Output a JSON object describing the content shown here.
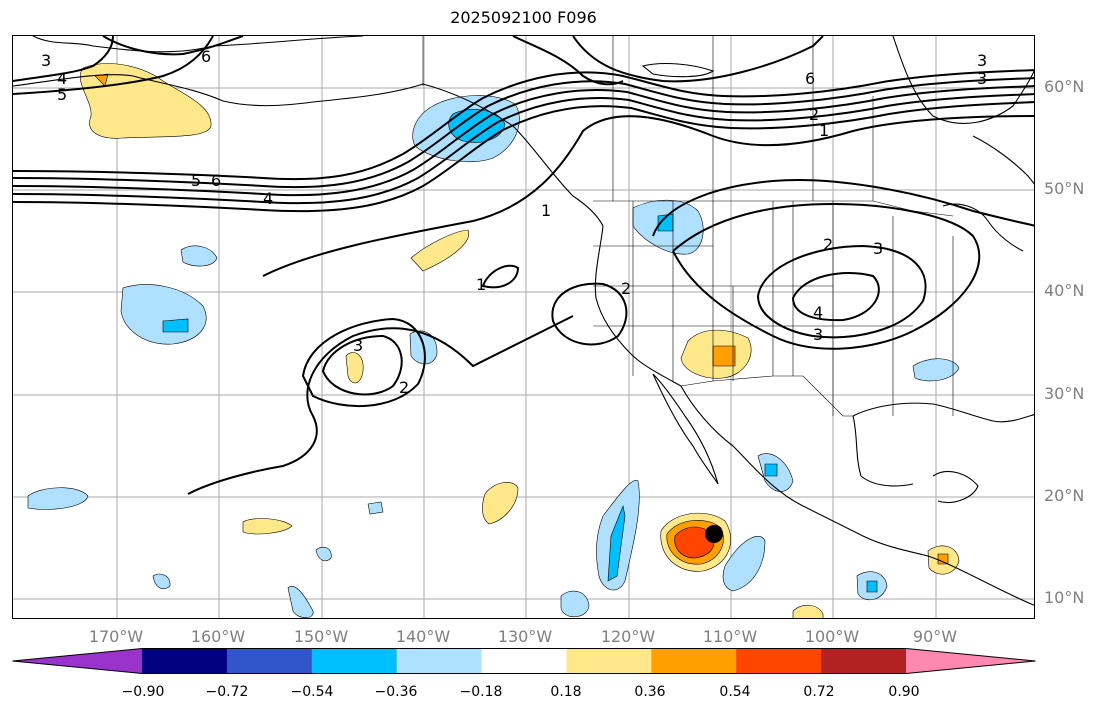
{
  "title": "2025092100 F096",
  "lat_labels": [
    "60°N",
    "50°N",
    "40°N",
    "30°N",
    "20°N",
    "10°N"
  ],
  "lon_labels": [
    "170°W",
    "160°W",
    "150°W",
    "140°W",
    "130°W",
    "120°W",
    "110°W",
    "100°W",
    "90°W"
  ],
  "colorbar": {
    "colors": [
      "#9933cc",
      "#000080",
      "#3355cc",
      "#00bfff",
      "#b0e0ff",
      "#ffffff",
      "#ffe88a",
      "#ff9f00",
      "#ff4500",
      "#b22222",
      "#ff88b0"
    ],
    "ticks": [
      "−0.90",
      "−0.72",
      "−0.54",
      "−0.36",
      "−0.18",
      "0.18",
      "0.36",
      "0.54",
      "0.72",
      "0.90"
    ]
  },
  "contour_labels": {
    "c1": "4",
    "c2": "5",
    "c3": "6",
    "c4": "3",
    "c5": "5",
    "c6": "6",
    "c7": "4",
    "c8": "1",
    "c9": "1",
    "c10": "3",
    "c11": "2",
    "c12": "2",
    "c13": "6",
    "c14": "3",
    "c15": "2",
    "c16": "1",
    "c17": "2",
    "c18": "3",
    "c19": "4",
    "c20": "3",
    "c21": "3"
  },
  "storm_marker": "black-dot"
}
